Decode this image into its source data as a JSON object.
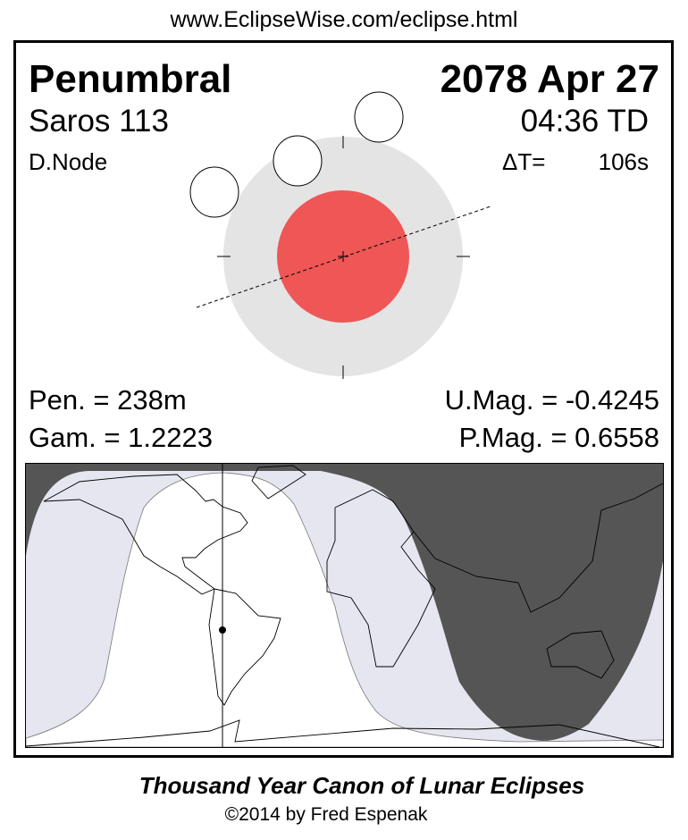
{
  "header": {
    "url": "www.EclipseWise.com/eclipse.html"
  },
  "eclipse": {
    "type": "Penumbral",
    "date": "2078 Apr 27",
    "saros": "Saros 113",
    "time": "04:36 TD",
    "node": "D.Node",
    "delta_t_label": "ΔT=",
    "delta_t_value": "106s",
    "pen_duration": "Pen. = 238m",
    "gamma": "Gam. = 1.2223",
    "umbral_mag": "U.Mag. = -0.4245",
    "penumbral_mag": "P.Mag. = 0.6558"
  },
  "colors": {
    "penumbra": "#e4e4e4",
    "umbra": "#ef5656",
    "night": "#555555",
    "penumbral_visibility": "#e6e6f0",
    "full_visibility": "#ffffff"
  },
  "footer": {
    "title": "Thousand Year Canon of Lunar Eclipses",
    "copyright": "©2014 by Fred Espenak"
  }
}
